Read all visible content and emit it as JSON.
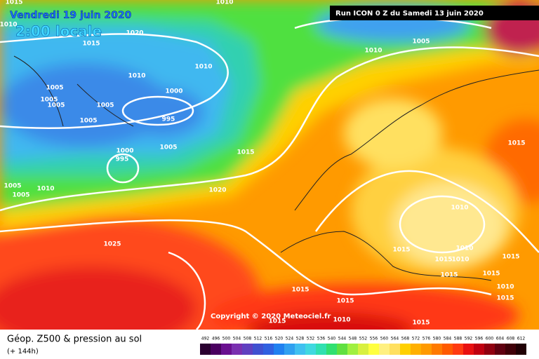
{
  "header": {
    "date": "Vendredi 19 juin 2020",
    "time": "2:00 locale",
    "run": "Run ICON 0 Z du Samedi 13 juin 2020",
    "copyright": "Copyright © 2020 Meteociel.fr"
  },
  "footer": {
    "title": "Géop. Z500 & pression au sol",
    "lead": "(+ 144h)"
  },
  "isobar_labels": [
    "1015",
    "1010",
    "1010",
    "1020",
    "1015",
    "1010",
    "1010",
    "1005",
    "1010",
    "1000",
    "1005",
    "1005",
    "1005",
    "1005",
    "995",
    "1005",
    "1005",
    "1000",
    "995",
    "1015",
    "1015",
    "1005",
    "1005",
    "1010",
    "1020",
    "1010",
    "1025",
    "1015",
    "1010",
    "1015",
    "1015",
    "1010",
    "1015",
    "1015",
    "1010",
    "1015",
    "1015",
    "1015",
    "1010",
    "1015",
    "1015"
  ],
  "scale_labels": [
    "492",
    "496",
    "500",
    "504",
    "508",
    "512",
    "516",
    "520",
    "524",
    "528",
    "532",
    "536",
    "540",
    "544",
    "548",
    "552",
    "556",
    "560",
    "564",
    "568",
    "572",
    "576",
    "580",
    "584",
    "588",
    "592",
    "596",
    "600",
    "604",
    "608",
    "612"
  ]
}
